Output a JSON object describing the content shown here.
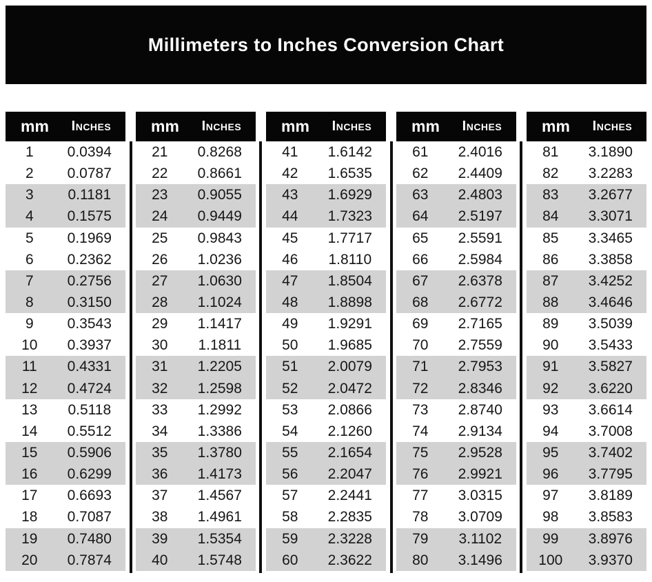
{
  "title": "Millimeters to Inches Conversion Chart",
  "table_header": {
    "mm": "mm",
    "inches": "Inches"
  },
  "colors": {
    "banner_bg": "#060606",
    "header_bg": "#060606",
    "alt_row_bg": "#d2d2d2",
    "divider": "#101010",
    "title_text": "#ffffff",
    "body_text": "#161616"
  },
  "chart_data": {
    "type": "table",
    "title": "Millimeters to Inches Conversion Chart",
    "columns": [
      "mm",
      "Inches"
    ],
    "layout": "5 side-by-side sub-tables of 20 rows; rows shaded in alternating pairs",
    "tables": [
      [
        [
          "1",
          "0.0394"
        ],
        [
          "2",
          "0.0787"
        ],
        [
          "3",
          "0.1181"
        ],
        [
          "4",
          "0.1575"
        ],
        [
          "5",
          "0.1969"
        ],
        [
          "6",
          "0.2362"
        ],
        [
          "7",
          "0.2756"
        ],
        [
          "8",
          "0.3150"
        ],
        [
          "9",
          "0.3543"
        ],
        [
          "10",
          "0.3937"
        ],
        [
          "11",
          "0.4331"
        ],
        [
          "12",
          "0.4724"
        ],
        [
          "13",
          "0.5118"
        ],
        [
          "14",
          "0.5512"
        ],
        [
          "15",
          "0.5906"
        ],
        [
          "16",
          "0.6299"
        ],
        [
          "17",
          "0.6693"
        ],
        [
          "18",
          "0.7087"
        ],
        [
          "19",
          "0.7480"
        ],
        [
          "20",
          "0.7874"
        ]
      ],
      [
        [
          "21",
          "0.8268"
        ],
        [
          "22",
          "0.8661"
        ],
        [
          "23",
          "0.9055"
        ],
        [
          "24",
          "0.9449"
        ],
        [
          "25",
          "0.9843"
        ],
        [
          "26",
          "1.0236"
        ],
        [
          "27",
          "1.0630"
        ],
        [
          "28",
          "1.1024"
        ],
        [
          "29",
          "1.1417"
        ],
        [
          "30",
          "1.1811"
        ],
        [
          "31",
          "1.2205"
        ],
        [
          "32",
          "1.2598"
        ],
        [
          "33",
          "1.2992"
        ],
        [
          "34",
          "1.3386"
        ],
        [
          "35",
          "1.3780"
        ],
        [
          "36",
          "1.4173"
        ],
        [
          "37",
          "1.4567"
        ],
        [
          "38",
          "1.4961"
        ],
        [
          "39",
          "1.5354"
        ],
        [
          "40",
          "1.5748"
        ]
      ],
      [
        [
          "41",
          "1.6142"
        ],
        [
          "42",
          "1.6535"
        ],
        [
          "43",
          "1.6929"
        ],
        [
          "44",
          "1.7323"
        ],
        [
          "45",
          "1.7717"
        ],
        [
          "46",
          "1.8110"
        ],
        [
          "47",
          "1.8504"
        ],
        [
          "48",
          "1.8898"
        ],
        [
          "49",
          "1.9291"
        ],
        [
          "50",
          "1.9685"
        ],
        [
          "51",
          "2.0079"
        ],
        [
          "52",
          "2.0472"
        ],
        [
          "53",
          "2.0866"
        ],
        [
          "54",
          "2.1260"
        ],
        [
          "55",
          "2.1654"
        ],
        [
          "56",
          "2.2047"
        ],
        [
          "57",
          "2.2441"
        ],
        [
          "58",
          "2.2835"
        ],
        [
          "59",
          "2.3228"
        ],
        [
          "60",
          "2.3622"
        ]
      ],
      [
        [
          "61",
          "2.4016"
        ],
        [
          "62",
          "2.4409"
        ],
        [
          "63",
          "2.4803"
        ],
        [
          "64",
          "2.5197"
        ],
        [
          "65",
          "2.5591"
        ],
        [
          "66",
          "2.5984"
        ],
        [
          "67",
          "2.6378"
        ],
        [
          "68",
          "2.6772"
        ],
        [
          "69",
          "2.7165"
        ],
        [
          "70",
          "2.7559"
        ],
        [
          "71",
          "2.7953"
        ],
        [
          "72",
          "2.8346"
        ],
        [
          "73",
          "2.8740"
        ],
        [
          "74",
          "2.9134"
        ],
        [
          "75",
          "2.9528"
        ],
        [
          "76",
          "2.9921"
        ],
        [
          "77",
          "3.0315"
        ],
        [
          "78",
          "3.0709"
        ],
        [
          "79",
          "3.1102"
        ],
        [
          "80",
          "3.1496"
        ]
      ],
      [
        [
          "81",
          "3.1890"
        ],
        [
          "82",
          "3.2283"
        ],
        [
          "83",
          "3.2677"
        ],
        [
          "84",
          "3.3071"
        ],
        [
          "85",
          "3.3465"
        ],
        [
          "86",
          "3.3858"
        ],
        [
          "87",
          "3.4252"
        ],
        [
          "88",
          "3.4646"
        ],
        [
          "89",
          "3.5039"
        ],
        [
          "90",
          "3.5433"
        ],
        [
          "91",
          "3.5827"
        ],
        [
          "92",
          "3.6220"
        ],
        [
          "93",
          "3.6614"
        ],
        [
          "94",
          "3.7008"
        ],
        [
          "95",
          "3.7402"
        ],
        [
          "96",
          "3.7795"
        ],
        [
          "97",
          "3.8189"
        ],
        [
          "98",
          "3.8583"
        ],
        [
          "99",
          "3.8976"
        ],
        [
          "100",
          "3.9370"
        ]
      ]
    ]
  }
}
